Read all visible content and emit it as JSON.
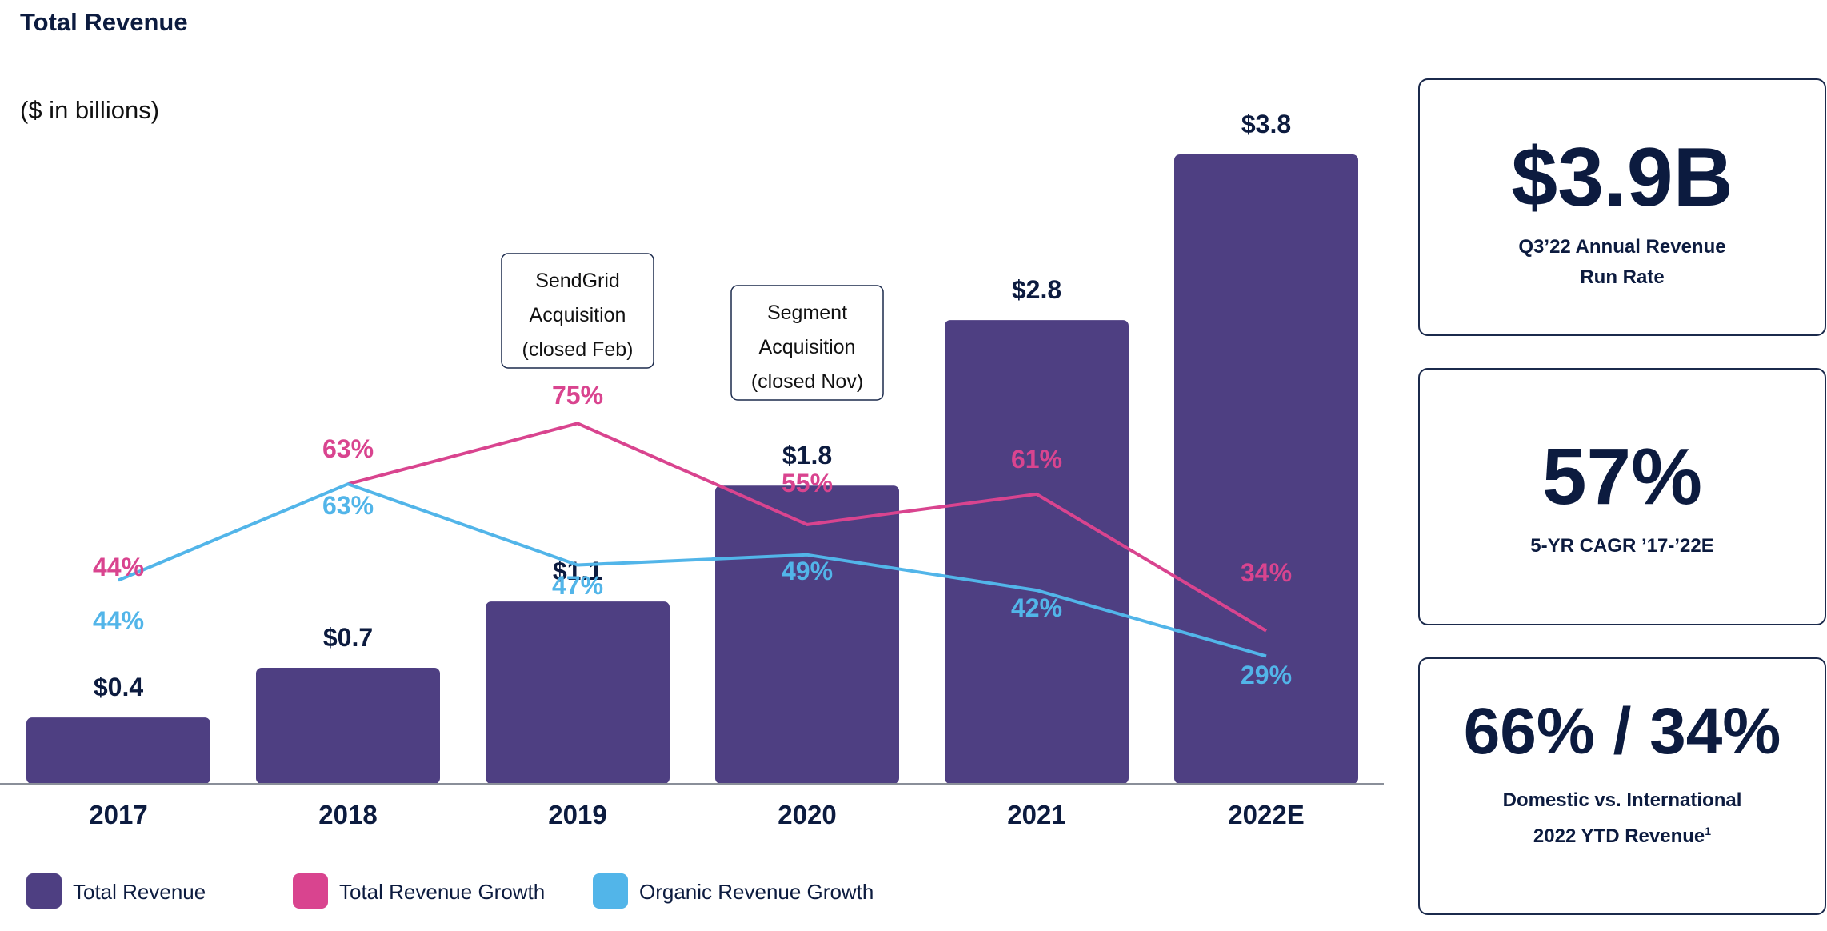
{
  "chart_data": {
    "type": "bar",
    "title": "Total Revenue",
    "subtitle": "($ in billions)",
    "categories": [
      "2017",
      "2018",
      "2019",
      "2020",
      "2021",
      "2022E"
    ],
    "series": [
      {
        "name": "Total Revenue",
        "kind": "bar",
        "color": "#4e3f82",
        "values": [
          0.4,
          0.7,
          1.1,
          1.8,
          2.8,
          3.8
        ],
        "labels": [
          "$0.4",
          "$0.7",
          "$1.1",
          "$1.8",
          "$2.8",
          "$3.8"
        ]
      },
      {
        "name": "Total Revenue Growth",
        "kind": "line",
        "color": "#d9448f",
        "values": [
          null,
          63,
          75,
          55,
          61,
          34
        ],
        "labels": [
          "44%",
          "63%",
          "75%",
          "55%",
          "61%",
          "34%"
        ]
      },
      {
        "name": "Organic Revenue Growth",
        "kind": "line",
        "color": "#52b5e9",
        "values": [
          44,
          63,
          47,
          49,
          42,
          29
        ],
        "labels": [
          "44%",
          "63%",
          "47%",
          "49%",
          "42%",
          "29%"
        ]
      }
    ],
    "y_bar_range": [
      0,
      3.8
    ],
    "annotations": [
      {
        "category": "2019",
        "lines": [
          "SendGrid",
          "Acquisition",
          "(closed Feb)"
        ]
      },
      {
        "category": "2020",
        "lines": [
          "Segment",
          "Acquisition",
          "(closed Nov)"
        ]
      }
    ],
    "legend_position": "bottom-left",
    "grid": false
  },
  "cards": [
    {
      "value": "$3.9B",
      "caption_lines": [
        "Q3’22 Annual Revenue",
        "Run Rate"
      ]
    },
    {
      "value": "57%",
      "caption_lines": [
        "5-YR CAGR ’17-’22E"
      ]
    },
    {
      "value": "66% / 34%",
      "caption_lines": [
        "Domestic vs. International",
        "2022 YTD Revenue"
      ],
      "footnote": "1"
    }
  ]
}
